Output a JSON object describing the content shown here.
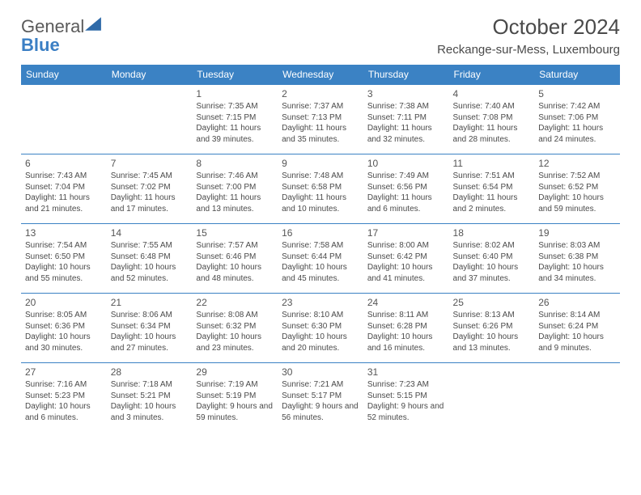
{
  "logo": {
    "word1": "General",
    "word2": "Blue"
  },
  "title": "October 2024",
  "location": "Reckange-sur-Mess, Luxembourg",
  "colors": {
    "header_bg": "#3b82c4",
    "header_fg": "#ffffff",
    "border": "#3b82c4",
    "text": "#4a4a4a"
  },
  "day_headers": [
    "Sunday",
    "Monday",
    "Tuesday",
    "Wednesday",
    "Thursday",
    "Friday",
    "Saturday"
  ],
  "weeks": [
    [
      null,
      null,
      {
        "d": "1",
        "sunrise": "Sunrise: 7:35 AM",
        "sunset": "Sunset: 7:15 PM",
        "daylight": "Daylight: 11 hours and 39 minutes."
      },
      {
        "d": "2",
        "sunrise": "Sunrise: 7:37 AM",
        "sunset": "Sunset: 7:13 PM",
        "daylight": "Daylight: 11 hours and 35 minutes."
      },
      {
        "d": "3",
        "sunrise": "Sunrise: 7:38 AM",
        "sunset": "Sunset: 7:11 PM",
        "daylight": "Daylight: 11 hours and 32 minutes."
      },
      {
        "d": "4",
        "sunrise": "Sunrise: 7:40 AM",
        "sunset": "Sunset: 7:08 PM",
        "daylight": "Daylight: 11 hours and 28 minutes."
      },
      {
        "d": "5",
        "sunrise": "Sunrise: 7:42 AM",
        "sunset": "Sunset: 7:06 PM",
        "daylight": "Daylight: 11 hours and 24 minutes."
      }
    ],
    [
      {
        "d": "6",
        "sunrise": "Sunrise: 7:43 AM",
        "sunset": "Sunset: 7:04 PM",
        "daylight": "Daylight: 11 hours and 21 minutes."
      },
      {
        "d": "7",
        "sunrise": "Sunrise: 7:45 AM",
        "sunset": "Sunset: 7:02 PM",
        "daylight": "Daylight: 11 hours and 17 minutes."
      },
      {
        "d": "8",
        "sunrise": "Sunrise: 7:46 AM",
        "sunset": "Sunset: 7:00 PM",
        "daylight": "Daylight: 11 hours and 13 minutes."
      },
      {
        "d": "9",
        "sunrise": "Sunrise: 7:48 AM",
        "sunset": "Sunset: 6:58 PM",
        "daylight": "Daylight: 11 hours and 10 minutes."
      },
      {
        "d": "10",
        "sunrise": "Sunrise: 7:49 AM",
        "sunset": "Sunset: 6:56 PM",
        "daylight": "Daylight: 11 hours and 6 minutes."
      },
      {
        "d": "11",
        "sunrise": "Sunrise: 7:51 AM",
        "sunset": "Sunset: 6:54 PM",
        "daylight": "Daylight: 11 hours and 2 minutes."
      },
      {
        "d": "12",
        "sunrise": "Sunrise: 7:52 AM",
        "sunset": "Sunset: 6:52 PM",
        "daylight": "Daylight: 10 hours and 59 minutes."
      }
    ],
    [
      {
        "d": "13",
        "sunrise": "Sunrise: 7:54 AM",
        "sunset": "Sunset: 6:50 PM",
        "daylight": "Daylight: 10 hours and 55 minutes."
      },
      {
        "d": "14",
        "sunrise": "Sunrise: 7:55 AM",
        "sunset": "Sunset: 6:48 PM",
        "daylight": "Daylight: 10 hours and 52 minutes."
      },
      {
        "d": "15",
        "sunrise": "Sunrise: 7:57 AM",
        "sunset": "Sunset: 6:46 PM",
        "daylight": "Daylight: 10 hours and 48 minutes."
      },
      {
        "d": "16",
        "sunrise": "Sunrise: 7:58 AM",
        "sunset": "Sunset: 6:44 PM",
        "daylight": "Daylight: 10 hours and 45 minutes."
      },
      {
        "d": "17",
        "sunrise": "Sunrise: 8:00 AM",
        "sunset": "Sunset: 6:42 PM",
        "daylight": "Daylight: 10 hours and 41 minutes."
      },
      {
        "d": "18",
        "sunrise": "Sunrise: 8:02 AM",
        "sunset": "Sunset: 6:40 PM",
        "daylight": "Daylight: 10 hours and 37 minutes."
      },
      {
        "d": "19",
        "sunrise": "Sunrise: 8:03 AM",
        "sunset": "Sunset: 6:38 PM",
        "daylight": "Daylight: 10 hours and 34 minutes."
      }
    ],
    [
      {
        "d": "20",
        "sunrise": "Sunrise: 8:05 AM",
        "sunset": "Sunset: 6:36 PM",
        "daylight": "Daylight: 10 hours and 30 minutes."
      },
      {
        "d": "21",
        "sunrise": "Sunrise: 8:06 AM",
        "sunset": "Sunset: 6:34 PM",
        "daylight": "Daylight: 10 hours and 27 minutes."
      },
      {
        "d": "22",
        "sunrise": "Sunrise: 8:08 AM",
        "sunset": "Sunset: 6:32 PM",
        "daylight": "Daylight: 10 hours and 23 minutes."
      },
      {
        "d": "23",
        "sunrise": "Sunrise: 8:10 AM",
        "sunset": "Sunset: 6:30 PM",
        "daylight": "Daylight: 10 hours and 20 minutes."
      },
      {
        "d": "24",
        "sunrise": "Sunrise: 8:11 AM",
        "sunset": "Sunset: 6:28 PM",
        "daylight": "Daylight: 10 hours and 16 minutes."
      },
      {
        "d": "25",
        "sunrise": "Sunrise: 8:13 AM",
        "sunset": "Sunset: 6:26 PM",
        "daylight": "Daylight: 10 hours and 13 minutes."
      },
      {
        "d": "26",
        "sunrise": "Sunrise: 8:14 AM",
        "sunset": "Sunset: 6:24 PM",
        "daylight": "Daylight: 10 hours and 9 minutes."
      }
    ],
    [
      {
        "d": "27",
        "sunrise": "Sunrise: 7:16 AM",
        "sunset": "Sunset: 5:23 PM",
        "daylight": "Daylight: 10 hours and 6 minutes."
      },
      {
        "d": "28",
        "sunrise": "Sunrise: 7:18 AM",
        "sunset": "Sunset: 5:21 PM",
        "daylight": "Daylight: 10 hours and 3 minutes."
      },
      {
        "d": "29",
        "sunrise": "Sunrise: 7:19 AM",
        "sunset": "Sunset: 5:19 PM",
        "daylight": "Daylight: 9 hours and 59 minutes."
      },
      {
        "d": "30",
        "sunrise": "Sunrise: 7:21 AM",
        "sunset": "Sunset: 5:17 PM",
        "daylight": "Daylight: 9 hours and 56 minutes."
      },
      {
        "d": "31",
        "sunrise": "Sunrise: 7:23 AM",
        "sunset": "Sunset: 5:15 PM",
        "daylight": "Daylight: 9 hours and 52 minutes."
      },
      null,
      null
    ]
  ]
}
